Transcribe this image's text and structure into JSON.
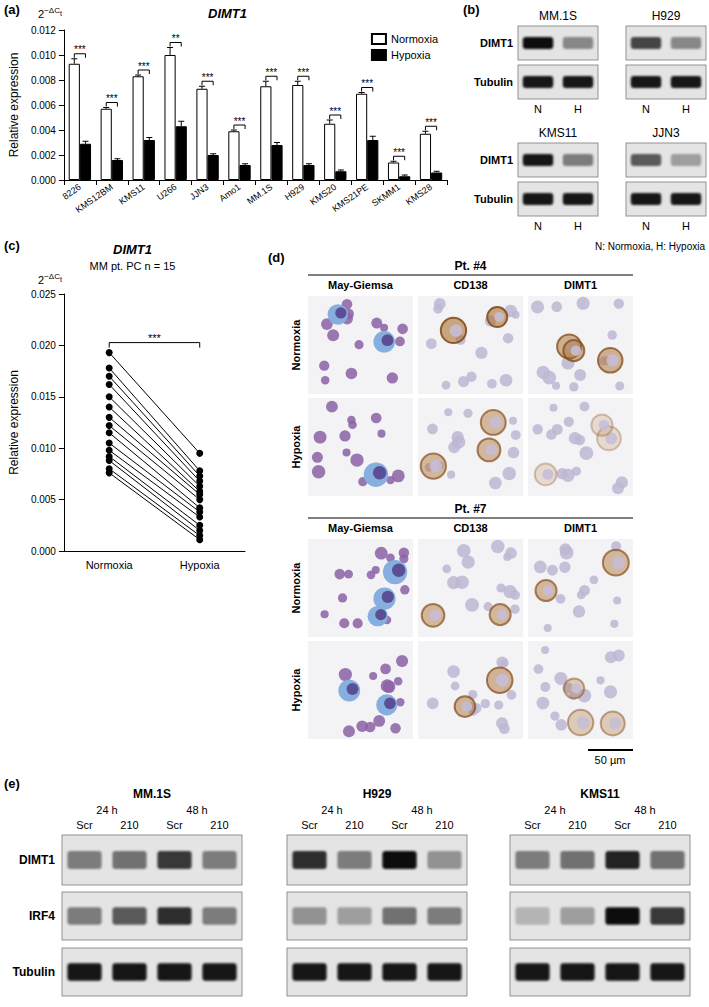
{
  "chart_data": [
    {
      "panel": "(a)",
      "type": "bar",
      "title": "DIMT1",
      "y_unit": {
        "base": "2",
        "exponent": "−ΔC",
        "subscript": "t"
      },
      "y_label": "Relative expression",
      "categories": [
        "8226",
        "KMS12BM",
        "KMS11",
        "U266",
        "JJN3",
        "Amo1",
        "MM.1S",
        "H929",
        "KMS20",
        "KMS21PE",
        "SKMM1",
        "KMS28"
      ],
      "series": [
        {
          "name": "Normoxia",
          "color": "#ffffff",
          "values": [
            0.0093,
            0.0057,
            0.0083,
            0.01,
            0.0073,
            0.0039,
            0.0075,
            0.0076,
            0.0045,
            0.0069,
            0.0014,
            0.0037
          ],
          "errors": [
            0.0004,
            0.0001,
            0.0001,
            0.0006,
            0.0002,
            0.0001,
            0.0004,
            0.0003,
            0.0003,
            0.0001,
            0.0001,
            0.0002
          ]
        },
        {
          "name": "Hypoxia",
          "color": "#000000",
          "values": [
            0.0029,
            0.0016,
            0.0032,
            0.0043,
            0.002,
            0.0012,
            0.0028,
            0.0012,
            0.0007,
            0.0032,
            0.0003,
            0.0006
          ],
          "errors": [
            0.0002,
            0.0001,
            0.0002,
            0.0004,
            0.0001,
            0.0001,
            0.0002,
            0.0001,
            0.0001,
            0.0003,
            0.0001,
            0.0001
          ]
        }
      ],
      "significance": [
        "***",
        "***",
        "***",
        "**",
        "***",
        "***",
        "***",
        "***",
        "***",
        "***",
        "***",
        "***"
      ],
      "ylim": [
        0,
        0.012
      ],
      "yticks": [
        {
          "value": 0,
          "label": "0.000"
        },
        0.002,
        0.004,
        0.006,
        0.008,
        {
          "value": 0.01,
          "label": "0.010"
        },
        0.012
      ],
      "legend": "top-right",
      "grid": false
    },
    {
      "panel": "(c)",
      "type": "line",
      "title": "DIMT1",
      "subtitle": "MM pt. PC n = 15",
      "y_unit": {
        "base": "2",
        "exponent": "−ΔC",
        "subscript": "t"
      },
      "y_label": "Relative expression",
      "categories": [
        "Normoxia",
        "Hypoxia"
      ],
      "series": [
        {
          "color": "#000000",
          "values": [
            0.0193,
            0.0095
          ]
        },
        {
          "color": "#000000",
          "values": [
            0.0178,
            0.0078
          ]
        },
        {
          "color": "#000000",
          "values": [
            0.017,
            0.0073
          ]
        },
        {
          "color": "#000000",
          "values": [
            0.0162,
            0.0068
          ]
        },
        {
          "color": "#000000",
          "values": [
            0.015,
            0.0063
          ]
        },
        {
          "color": "#000000",
          "values": [
            0.014,
            0.0058
          ]
        },
        {
          "color": "#000000",
          "values": [
            0.013,
            0.0055
          ]
        },
        {
          "color": "#000000",
          "values": [
            0.0122,
            0.005
          ]
        },
        {
          "color": "#000000",
          "values": [
            0.0115,
            0.0042
          ]
        },
        {
          "color": "#000000",
          "values": [
            0.0105,
            0.0038
          ]
        },
        {
          "color": "#000000",
          "values": [
            0.0098,
            0.0033
          ]
        },
        {
          "color": "#000000",
          "values": [
            0.0092,
            0.0025
          ]
        },
        {
          "color": "#000000",
          "values": [
            0.0088,
            0.002
          ]
        },
        {
          "color": "#000000",
          "values": [
            0.008,
            0.0015
          ]
        },
        {
          "color": "#000000",
          "values": [
            0.0076,
            0.0011
          ]
        }
      ],
      "marker": "circle",
      "significance": "***",
      "ylim": [
        0,
        0.025
      ],
      "yticks": [
        {
          "value": 0,
          "label": "0.000"
        },
        0.005,
        {
          "value": 0.01,
          "label": "0.010"
        },
        0.015,
        {
          "value": 0.02,
          "label": "0.020"
        },
        0.025
      ],
      "grid": false
    }
  ],
  "panel_b": {
    "panel": "(b)",
    "rows": [
      "DIMT1",
      "Tubulin"
    ],
    "lanes": [
      "N",
      "H"
    ],
    "blots": [
      {
        "title": "MM.1S",
        "bands": [
          [
            0.95,
            0.4
          ],
          [
            0.9,
            0.9
          ]
        ]
      },
      {
        "title": "H929",
        "bands": [
          [
            0.7,
            0.4
          ],
          [
            0.9,
            0.9
          ]
        ]
      },
      {
        "title": "KMS11",
        "bands": [
          [
            0.9,
            0.45
          ],
          [
            0.9,
            0.9
          ]
        ]
      },
      {
        "title": "JJN3",
        "bands": [
          [
            0.6,
            0.3
          ],
          [
            0.9,
            0.9
          ]
        ]
      }
    ],
    "note": "N: Normoxia, H: Hypoxia"
  },
  "panel_d": {
    "panel": "(d)",
    "columns": [
      "May-Giemsa",
      "CD138",
      "DIMT1"
    ],
    "rows": [
      "Normoxia",
      "Hypoxia"
    ],
    "patients": [
      {
        "title": "Pt. #4",
        "staining": [
          [
            1,
            1
          ],
          [
            0.85,
            0.6
          ],
          [
            0.7,
            0.12
          ]
        ]
      },
      {
        "title": "Pt. #7",
        "staining": [
          [
            1,
            1
          ],
          [
            0.6,
            0.65
          ],
          [
            0.6,
            0.35
          ]
        ]
      }
    ],
    "scale_bar": "50 µm"
  },
  "panel_e": {
    "panel": "(e)",
    "rows": [
      "DIMT1",
      "IRF4",
      "Tubulin"
    ],
    "times": [
      "24 h",
      "48 h"
    ],
    "lanes": [
      "Scr",
      "210"
    ],
    "blots": [
      {
        "title": "MM.1S",
        "bands": [
          [
            0.45,
            0.5,
            0.75,
            0.45
          ],
          [
            0.45,
            0.6,
            0.8,
            0.45
          ],
          [
            0.9,
            0.9,
            0.9,
            0.9
          ]
        ]
      },
      {
        "title": "H929",
        "bands": [
          [
            0.8,
            0.45,
            0.95,
            0.35
          ],
          [
            0.35,
            0.3,
            0.5,
            0.45
          ],
          [
            0.9,
            0.9,
            0.9,
            0.9
          ]
        ]
      },
      {
        "title": "KMS11",
        "bands": [
          [
            0.45,
            0.5,
            0.85,
            0.5
          ],
          [
            0.2,
            0.3,
            0.95,
            0.75
          ],
          [
            0.9,
            0.9,
            0.9,
            0.9
          ]
        ]
      }
    ]
  }
}
